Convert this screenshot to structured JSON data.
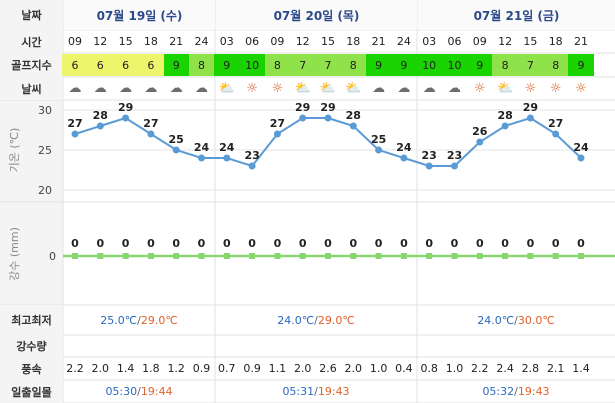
{
  "labels": {
    "date": "날짜",
    "time": "시간",
    "golf_index": "골프지수",
    "weather": "날씨",
    "temp_axis": "기온 (℃)",
    "rain_axis": "강수 (mm)",
    "min_max": "최고최저",
    "precip": "강수량",
    "wind": "풍속",
    "sunrise_sunset": "일출일몰"
  },
  "days": [
    {
      "date": "07월 19일 (수)",
      "min": "25.0℃",
      "max": "29.0℃",
      "sunrise": "05:30",
      "sunset": "19:44"
    },
    {
      "date": "07월 20일 (목)",
      "min": "24.0℃",
      "max": "29.0℃",
      "sunrise": "05:31",
      "sunset": "19:43"
    },
    {
      "date": "07월 21일 (금)",
      "min": "24.0℃",
      "max": "30.0℃",
      "sunrise": "05:32",
      "sunset": "19:43"
    }
  ],
  "colors": {
    "golf_high": "#19d400",
    "golf_mid": "#8fe24a",
    "golf_low": "#edf56a",
    "temp_line": "#5b9bd5",
    "rain_line": "#88d672",
    "header_text": "#2c4a8a"
  },
  "chart_data": [
    {
      "type": "line",
      "x": [
        "09",
        "12",
        "15",
        "18",
        "21",
        "24",
        "03",
        "06",
        "09",
        "12",
        "15",
        "18",
        "21",
        "24",
        "03",
        "06",
        "09",
        "12",
        "15",
        "18",
        "21"
      ],
      "series": [
        {
          "values": [
            27,
            28,
            29,
            27,
            25,
            24,
            24,
            23,
            27,
            29,
            29,
            28,
            25,
            24,
            23,
            23,
            26,
            28,
            29,
            27,
            24
          ]
        }
      ],
      "ylabel": "기온 (℃)",
      "ylim": [
        20,
        30
      ],
      "yticks": [
        20,
        25,
        30
      ],
      "grid": true
    },
    {
      "type": "line",
      "x": [
        "09",
        "12",
        "15",
        "18",
        "21",
        "24",
        "03",
        "06",
        "09",
        "12",
        "15",
        "18",
        "21",
        "24",
        "03",
        "06",
        "09",
        "12",
        "15",
        "18",
        "21"
      ],
      "series": [
        {
          "values": [
            0,
            0,
            0,
            0,
            0,
            0,
            0,
            0,
            0,
            0,
            0,
            0,
            0,
            0,
            0,
            0,
            0,
            0,
            0,
            0,
            0
          ]
        }
      ],
      "ylabel": "강수 (mm)",
      "yticks": [
        0
      ]
    }
  ],
  "hours": [
    "09",
    "12",
    "15",
    "18",
    "21",
    "24",
    "03",
    "06",
    "09",
    "12",
    "15",
    "18",
    "21",
    "24",
    "03",
    "06",
    "09",
    "12",
    "15",
    "18",
    "21"
  ],
  "golf": [
    6,
    6,
    6,
    6,
    9,
    8,
    9,
    10,
    8,
    7,
    7,
    8,
    9,
    9,
    10,
    10,
    9,
    8,
    7,
    8,
    9
  ],
  "weather": [
    "cloudy",
    "cloudy",
    "cloudy",
    "cloudy",
    "cloudy",
    "cloudy",
    "partly",
    "sun",
    "sun",
    "partly",
    "partly",
    "partly",
    "cloudy",
    "cloudy",
    "cloudy",
    "cloudy",
    "sun",
    "partly",
    "sun",
    "sun",
    "sun"
  ],
  "wind": [
    "2.2",
    "2.0",
    "1.4",
    "1.8",
    "1.2",
    "0.9",
    "0.7",
    "0.9",
    "1.1",
    "2.0",
    "2.6",
    "2.0",
    "1.0",
    "0.4",
    "0.8",
    "1.0",
    "2.2",
    "2.4",
    "2.8",
    "2.1",
    "1.4"
  ]
}
